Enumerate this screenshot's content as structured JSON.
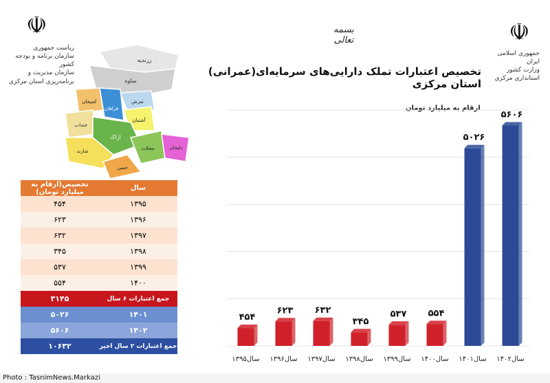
{
  "header": {
    "basmala": "بسمه تعالی",
    "title": "تخصیص اعتبارات تملک دارایی‌های سرمایه‌ای(عمرانی) استان مرکزی",
    "left_org": [
      "ریاست جمهوری",
      "سازمان برنامه و بودجه کشور",
      "سازمان مدیریت و برنامه‌ریزی استان مرکزی"
    ],
    "right_org": [
      "جمهوری اسلامی ایران",
      "وزارت کشور",
      "استانداری مرکزی"
    ]
  },
  "map": {
    "regions": [
      "زرندیه",
      "ساوه",
      "تفرش",
      "کمیجان",
      "فراهان",
      "آشتیان",
      "خنداب",
      "اراک",
      "شازند",
      "خمین",
      "محلات",
      "دلیجان"
    ]
  },
  "table": {
    "col_year": "سال",
    "col_value": "تخصیص(ارقام به میلیارد تومان)",
    "rows": [
      {
        "year": "۱۳۹۵",
        "value": "۴۵۴"
      },
      {
        "year": "۱۳۹۶",
        "value": "۶۲۳"
      },
      {
        "year": "۱۳۹۷",
        "value": "۶۳۲"
      },
      {
        "year": "۱۳۹۸",
        "value": "۳۴۵"
      },
      {
        "year": "۱۳۹۹",
        "value": "۵۳۷"
      },
      {
        "year": "۱۴۰۰",
        "value": "۵۵۴"
      }
    ],
    "total6_label": "جمع اعتبارات ۶ سال",
    "total6_value": "۳۱۴۵",
    "recent": [
      {
        "year": "۱۴۰۱",
        "value": "۵۰۲۶"
      },
      {
        "year": "۱۴۰۲",
        "value": "۵۶۰۶"
      }
    ],
    "total2_label": "جمع اعتبارات ۲ سال اخیر",
    "total2_value": "۱۰۶۳۲"
  },
  "chart_data": {
    "type": "bar",
    "unit_label": "ارقام به میلیارد تومان",
    "categories": [
      "سال۱۳۹۵",
      "سال۱۳۹۶",
      "سال۱۳۹۷",
      "سال۱۳۹۸",
      "سال۱۳۹۹",
      "سال۱۴۰۰",
      "سال۱۴۰۱",
      "سال۱۴۰۲"
    ],
    "values": [
      454,
      623,
      632,
      345,
      537,
      554,
      5026,
      5606
    ],
    "value_labels": [
      "۴۵۴",
      "۶۲۳",
      "۶۳۲",
      "۳۴۵",
      "۵۳۷",
      "۵۵۴",
      "۵۰۲۶",
      "۵۶۰۶"
    ],
    "colors": [
      "#d0212a",
      "#d0212a",
      "#d0212a",
      "#d0212a",
      "#d0212a",
      "#d0212a",
      "#2c4a96",
      "#2c4a96"
    ],
    "ylim": [
      0,
      6000
    ],
    "grid": true,
    "legend": "none"
  },
  "footer": {
    "photo_credit": "Photo : TasnimNews.Markazi"
  },
  "colors": {
    "red_bar": "#d0212a",
    "blue_bar": "#2c4a96",
    "table_header": "#e47932"
  }
}
